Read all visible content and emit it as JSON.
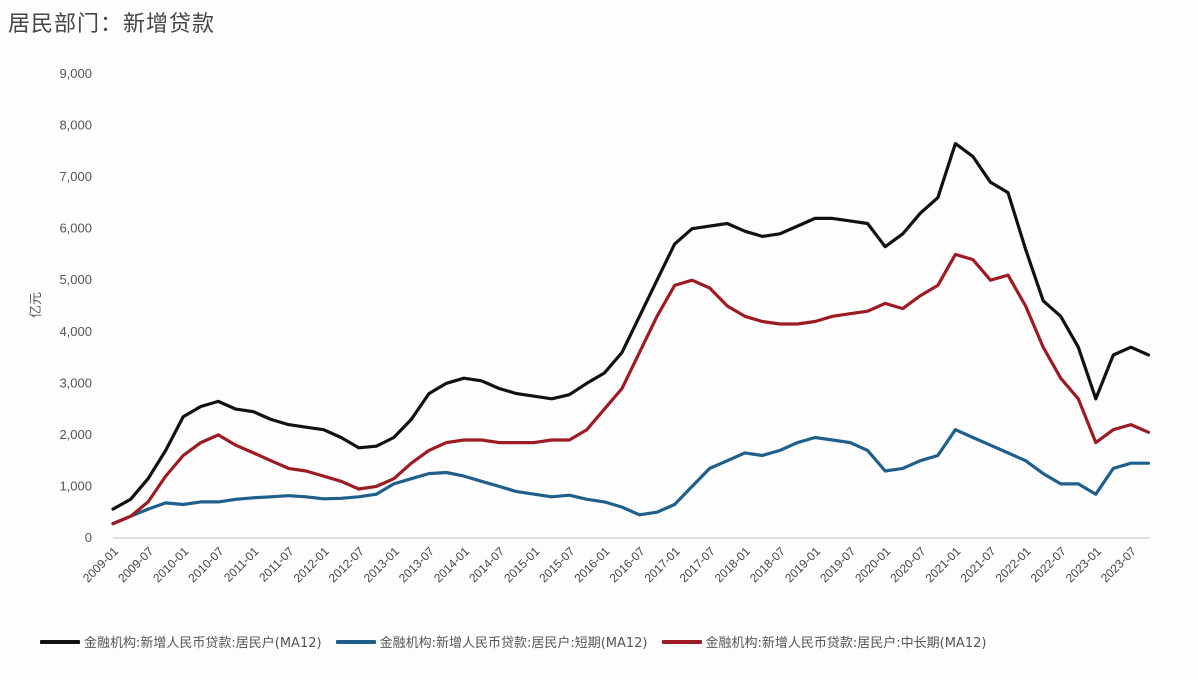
{
  "title": "居民部门：新增贷款",
  "chart_data": {
    "type": "line",
    "title": "居民部门：新增贷款",
    "xlabel": "",
    "ylabel": "亿元",
    "ylim": [
      0,
      9000
    ],
    "yticks": [
      0,
      1000,
      2000,
      3000,
      4000,
      5000,
      6000,
      7000,
      8000,
      9000
    ],
    "ytick_labels": [
      "0",
      "1,000",
      "2,000",
      "3,000",
      "4,000",
      "5,000",
      "6,000",
      "7,000",
      "8,000",
      "9,000"
    ],
    "xtick_labels": [
      "2009-01",
      "2009-07",
      "2010-01",
      "2010-07",
      "2011-01",
      "2011-07",
      "2012-01",
      "2012-07",
      "2013-01",
      "2013-07",
      "2014-01",
      "2014-07",
      "2015-01",
      "2015-07",
      "2016-01",
      "2016-07",
      "2017-01",
      "2017-07",
      "2018-01",
      "2018-07",
      "2019-01",
      "2019-07",
      "2020-01",
      "2020-07",
      "2021-01",
      "2021-07",
      "2022-01",
      "2022-07",
      "2023-01",
      "2023-07"
    ],
    "grid": false,
    "legend_position": "bottom",
    "x": [
      "2009-01",
      "2009-04",
      "2009-07",
      "2009-10",
      "2010-01",
      "2010-04",
      "2010-07",
      "2010-10",
      "2011-01",
      "2011-04",
      "2011-07",
      "2011-10",
      "2012-01",
      "2012-04",
      "2012-07",
      "2012-10",
      "2013-01",
      "2013-04",
      "2013-07",
      "2013-10",
      "2014-01",
      "2014-04",
      "2014-07",
      "2014-10",
      "2015-01",
      "2015-04",
      "2015-07",
      "2015-10",
      "2016-01",
      "2016-04",
      "2016-07",
      "2016-10",
      "2017-01",
      "2017-04",
      "2017-07",
      "2017-10",
      "2018-01",
      "2018-04",
      "2018-07",
      "2018-10",
      "2019-01",
      "2019-04",
      "2019-07",
      "2019-10",
      "2020-01",
      "2020-04",
      "2020-07",
      "2020-10",
      "2021-01",
      "2021-04",
      "2021-07",
      "2021-10",
      "2022-01",
      "2022-04",
      "2022-07",
      "2022-10",
      "2023-01",
      "2023-04",
      "2023-07",
      "2023-10"
    ],
    "series": [
      {
        "name": "金融机构:新增人民币贷款:居民户(MA12)",
        "color": "#111111",
        "values": [
          560,
          750,
          1150,
          1700,
          2350,
          2550,
          2650,
          2500,
          2450,
          2300,
          2200,
          2150,
          2100,
          1950,
          1750,
          1780,
          1950,
          2300,
          2800,
          3000,
          3100,
          3050,
          2900,
          2800,
          2750,
          2700,
          2780,
          3000,
          3200,
          3600,
          4300,
          5000,
          5700,
          6000,
          6050,
          6100,
          5950,
          5850,
          5900,
          6050,
          6200,
          6200,
          6150,
          6100,
          5650,
          5900,
          6300,
          6600,
          7650,
          7400,
          6900,
          6700,
          5600,
          4600,
          4300,
          3700,
          2700,
          3550,
          3700,
          3550
        ]
      },
      {
        "name": "金融机构:新增人民币贷款:居民户:短期(MA12)",
        "color": "#1f5f8b",
        "values": [
          280,
          420,
          560,
          680,
          650,
          700,
          700,
          750,
          780,
          800,
          820,
          800,
          760,
          770,
          800,
          850,
          1050,
          1150,
          1250,
          1270,
          1200,
          1100,
          1000,
          900,
          850,
          800,
          830,
          750,
          700,
          600,
          450,
          500,
          650,
          1000,
          1350,
          1500,
          1650,
          1600,
          1700,
          1850,
          1950,
          1900,
          1850,
          1700,
          1300,
          1350,
          1500,
          1600,
          2100,
          1950,
          1800,
          1650,
          1500,
          1250,
          1050,
          1050,
          850,
          1350,
          1450,
          1450
        ]
      },
      {
        "name": "金融机构:新增人民币贷款:居民户:中长期(MA12)",
        "color": "#9e1b24",
        "values": [
          280,
          420,
          700,
          1200,
          1600,
          1850,
          2000,
          1800,
          1650,
          1500,
          1350,
          1300,
          1200,
          1100,
          950,
          1000,
          1150,
          1450,
          1700,
          1850,
          1900,
          1900,
          1850,
          1850,
          1850,
          1900,
          1900,
          2100,
          2500,
          2900,
          3600,
          4300,
          4900,
          5000,
          4850,
          4500,
          4300,
          4200,
          4150,
          4150,
          4200,
          4300,
          4350,
          4400,
          4550,
          4450,
          4700,
          4900,
          5500,
          5400,
          5000,
          5100,
          4500,
          3700,
          3100,
          2700,
          1850,
          2100,
          2200,
          2050
        ]
      }
    ]
  },
  "legend": [
    {
      "label": "金融机构:新增人民币贷款:居民户(MA12)",
      "color": "#111111"
    },
    {
      "label": "金融机构:新增人民币贷款:居民户:短期(MA12)",
      "color": "#1f5f8b"
    },
    {
      "label": "金融机构:新增人民币贷款:居民户:中长期(MA12)",
      "color": "#9e1b24"
    }
  ]
}
